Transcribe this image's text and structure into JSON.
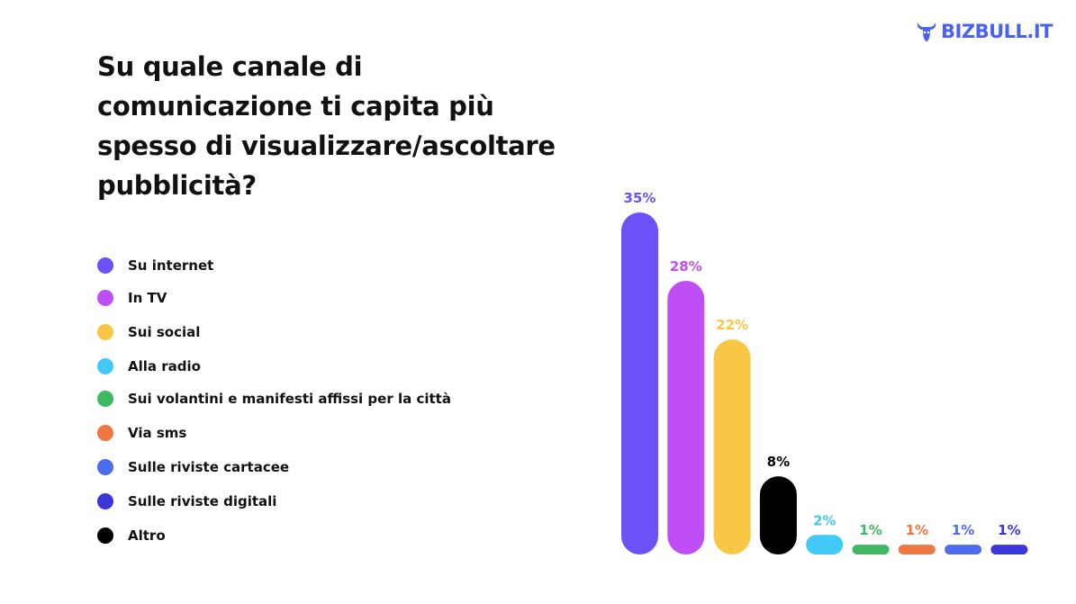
{
  "logo": {
    "text": "BIZBULL.IT",
    "icon": "bull-head-icon",
    "color": "#4a62f0"
  },
  "chart_data": {
    "type": "bar",
    "title": "Su quale canale di comunicazione ti capita più spesso di visualizzare/ascoltare pubblicità?",
    "categories": [
      "Su internet",
      "In TV",
      "Sui social",
      "Alla radio",
      "Sui volantini e manifesti affissi per la città",
      "Via sms",
      "Sulle riviste cartacee",
      "Sulle riviste digitali",
      "Altro"
    ],
    "values": [
      35,
      28,
      22,
      2,
      1,
      1,
      1,
      1,
      8
    ],
    "value_labels": [
      "35%",
      "28%",
      "22%",
      "2%",
      "1%",
      "1%",
      "1%",
      "1%",
      "8%"
    ],
    "colors": [
      "#6b52f7",
      "#bf4ef7",
      "#f9c645",
      "#41c9f7",
      "#3fb862",
      "#f07742",
      "#4e6cf0",
      "#3c35d9",
      "#000000"
    ],
    "bar_order": [
      0,
      1,
      2,
      8,
      3,
      4,
      5,
      6,
      7
    ],
    "legend_position": "left",
    "grid": false
  }
}
